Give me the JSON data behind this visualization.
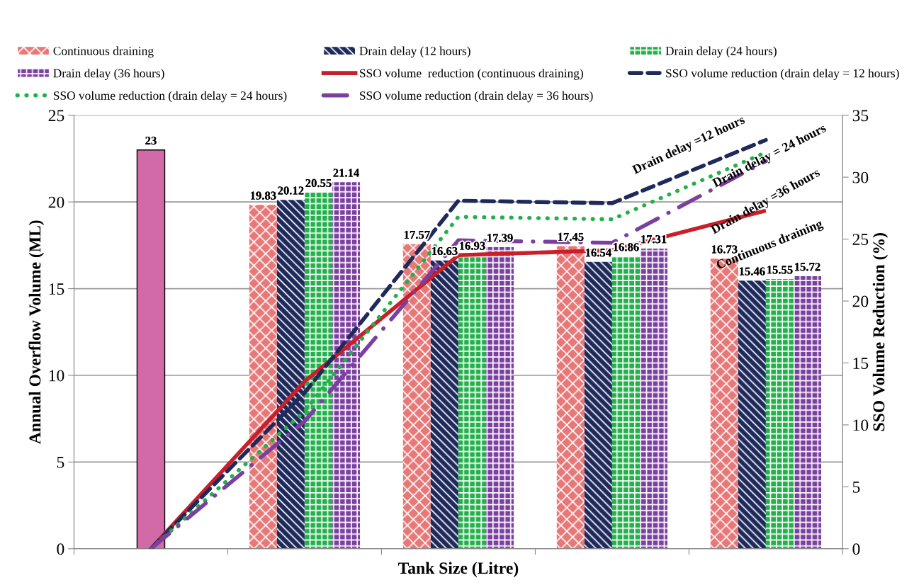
{
  "chart_data": {
    "type": "bar",
    "xlabel": "Tank Size (Litre)",
    "ylabel": "Annual Overflow Volume (ML)",
    "y2label": "SSO Volume Reduction (%)",
    "categories": [
      null,
      null,
      null,
      null,
      null
    ],
    "series": [
      {
        "color": "#d36aa8",
        "values": [
          23,
          null,
          null,
          null,
          null
        ],
        "value_labels": [
          "23",
          null,
          null,
          null,
          null
        ]
      },
      {
        "name": "Continuous draining",
        "color": "#e87878",
        "values": [
          null,
          19.83,
          17.57,
          17.45,
          16.73
        ],
        "value_labels": [
          null,
          "19.83",
          "17.57",
          "17.45",
          "16.73"
        ]
      },
      {
        "name": "Drain delay (12 hours)",
        "color": "#1f2a5c",
        "values": [
          null,
          20.12,
          16.63,
          16.54,
          15.46
        ],
        "value_labels": [
          null,
          "20.12",
          "16.63",
          "16.54",
          "15.46"
        ]
      },
      {
        "name": "Drain delay (24 hours)",
        "color": "#22b04a",
        "values": [
          null,
          20.55,
          16.93,
          16.86,
          15.55
        ],
        "value_labels": [
          null,
          "20.55",
          "16.93",
          "16.86",
          "15.55"
        ]
      },
      {
        "name": "Drain delay (36 hours)",
        "color": "#7b3fa0",
        "values": [
          null,
          21.14,
          17.39,
          17.31,
          15.72
        ],
        "value_labels": [
          null,
          "21.14",
          "17.39",
          "17.31",
          "15.72"
        ]
      },
      {
        "name": "SSO volume  reduction (continuous draining)",
        "type": "line",
        "axis": "y2",
        "line_style": "solid",
        "color": "#c8202a",
        "values": [
          0,
          13.5,
          23.7,
          24.1,
          27.3
        ]
      },
      {
        "name": "SSO volume reduction (drain delay = 12 hours)",
        "type": "line",
        "axis": "y2",
        "line_style": "dashed",
        "color": "#1f2a5c",
        "values": [
          0,
          12.6,
          28.1,
          27.9,
          33.0
        ]
      },
      {
        "name": "SSO volume reduction (drain delay = 24 hours)",
        "type": "line",
        "axis": "y2",
        "line_style": "dotted",
        "color": "#22b04a",
        "values": [
          0,
          11.1,
          26.8,
          26.6,
          32.0
        ]
      },
      {
        "name": "SSO volume reduction (drain delay = 36 hours)",
        "type": "line",
        "axis": "y2",
        "line_style": "dashed",
        "color": "#7b3fa0",
        "values": [
          0,
          10.3,
          24.9,
          24.7,
          31.3
        ]
      }
    ],
    "ylim": [
      0,
      25
    ],
    "yticks": [
      0,
      5,
      10,
      15,
      20,
      25
    ],
    "y2lim": [
      0,
      35
    ],
    "y2ticks": [
      0,
      5,
      10,
      15,
      20,
      25,
      30,
      35
    ],
    "grid": "y",
    "legend": "top",
    "annotations": [
      "Drain delay =12 hours",
      "Drain delay = 24 hours",
      "Drain delay =36 hours",
      "Continuous draining"
    ]
  }
}
